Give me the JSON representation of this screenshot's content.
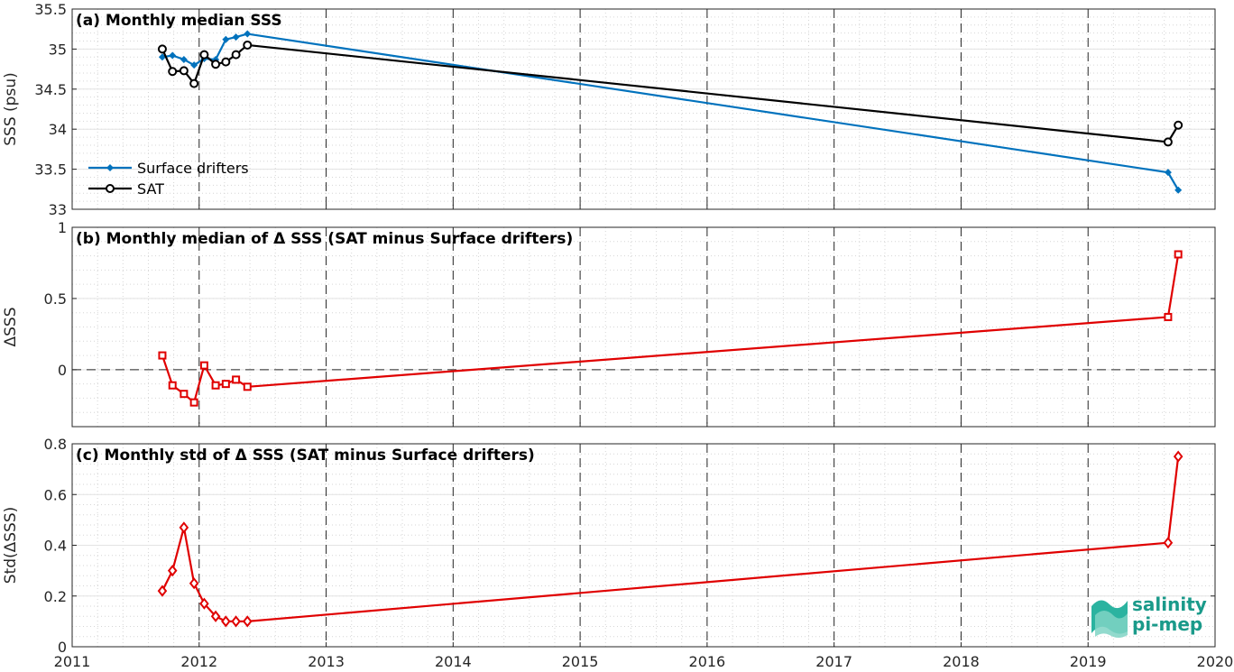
{
  "chart_data": [
    {
      "type": "line",
      "title": "(a) Monthly median SSS",
      "ylabel": "SSS (psu)",
      "xlim": [
        2011,
        2020
      ],
      "ylim": [
        33,
        35.5
      ],
      "yticks": [
        "33",
        "33.5",
        "34",
        "34.5",
        "35",
        "35.5"
      ],
      "grid": true,
      "legend": "bottom-left",
      "series": [
        {
          "name": "Surface drifters",
          "color": "#0072BD",
          "marker": "dot",
          "x": [
            2011.71,
            2011.79,
            2011.88,
            2011.96,
            2012.04,
            2012.13,
            2012.21,
            2012.29,
            2012.38,
            2019.63,
            2019.71
          ],
          "y": [
            34.9,
            34.92,
            34.87,
            34.8,
            34.88,
            34.87,
            35.12,
            35.15,
            35.19,
            33.46,
            33.24
          ]
        },
        {
          "name": "SAT",
          "color": "#000000",
          "marker": "circle",
          "x": [
            2011.71,
            2011.79,
            2011.88,
            2011.96,
            2012.04,
            2012.13,
            2012.21,
            2012.29,
            2012.38,
            2019.63,
            2019.71
          ],
          "y": [
            35.0,
            34.72,
            34.73,
            34.57,
            34.93,
            34.81,
            34.84,
            34.93,
            35.05,
            33.84,
            34.05
          ]
        }
      ]
    },
    {
      "type": "line",
      "title": "(b) Monthly median of Δ SSS (SAT minus Surface drifters)",
      "ylabel": "ΔSSS",
      "xlim": [
        2011,
        2020
      ],
      "ylim": [
        -0.4,
        1
      ],
      "yticks": [
        "0",
        "0.5",
        "1"
      ],
      "zero_line": true,
      "grid": true,
      "series": [
        {
          "color": "#E00000",
          "marker": "square",
          "x": [
            2011.71,
            2011.79,
            2011.88,
            2011.96,
            2012.04,
            2012.13,
            2012.21,
            2012.29,
            2012.38,
            2019.63,
            2019.71
          ],
          "y": [
            0.1,
            -0.11,
            -0.17,
            -0.23,
            0.03,
            -0.11,
            -0.1,
            -0.07,
            -0.12,
            0.37,
            0.81
          ]
        }
      ]
    },
    {
      "type": "line",
      "title": "(c) Monthly std of Δ SSS (SAT minus Surface drifters)",
      "ylabel": "Std(ΔSSS)",
      "xlim": [
        2011,
        2020
      ],
      "ylim": [
        0,
        0.8
      ],
      "yticks": [
        "0",
        "0.2",
        "0.4",
        "0.6",
        "0.8"
      ],
      "xticks": [
        "2011",
        "2012",
        "2013",
        "2014",
        "2015",
        "2016",
        "2017",
        "2018",
        "2019",
        "2020"
      ],
      "grid": true,
      "series": [
        {
          "color": "#E00000",
          "marker": "diamond",
          "x": [
            2011.71,
            2011.79,
            2011.88,
            2011.96,
            2012.04,
            2012.13,
            2012.21,
            2012.29,
            2012.38,
            2019.63,
            2019.71
          ],
          "y": [
            0.22,
            0.3,
            0.47,
            0.25,
            0.17,
            0.12,
            0.1,
            0.1,
            0.1,
            0.41,
            0.75
          ]
        }
      ]
    }
  ],
  "logo": {
    "line1": "salinity",
    "line2": "pi-mep"
  }
}
